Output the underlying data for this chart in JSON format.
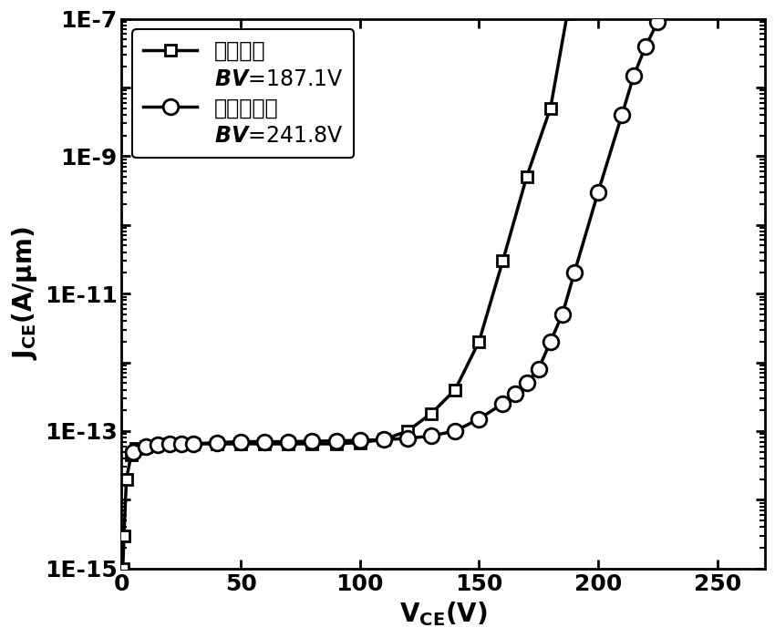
{
  "title": "",
  "xlim": [
    0,
    270
  ],
  "ylim_log": [
    -15,
    -7
  ],
  "background_color": "#ffffff",
  "line_color": "#000000",
  "series1_label": "常规结构",
  "series1_bv": "BV=187.1V",
  "series2_label": "本发明结构",
  "series2_bv": "BV=241.8V",
  "series1_x": [
    0.5,
    1,
    2,
    4,
    6,
    10,
    20,
    30,
    40,
    50,
    60,
    70,
    80,
    90,
    100,
    110,
    120,
    130,
    140,
    150,
    160,
    170,
    180,
    187.1
  ],
  "series1_y": [
    1e-15,
    3e-15,
    2e-14,
    4.5e-14,
    5.5e-14,
    6e-14,
    6.5e-14,
    6.5e-14,
    6.5e-14,
    6.5e-14,
    6.5e-14,
    6.5e-14,
    6.5e-14,
    6.5e-14,
    6.8e-14,
    7.5e-14,
    1e-13,
    1.8e-13,
    4e-13,
    2e-12,
    3e-11,
    5e-10,
    5e-09,
    1.2e-07
  ],
  "series2_x": [
    5,
    10,
    15,
    20,
    25,
    30,
    40,
    50,
    60,
    70,
    80,
    90,
    100,
    110,
    120,
    130,
    140,
    150,
    160,
    165,
    170,
    175,
    180,
    185,
    190,
    200,
    210,
    215,
    220,
    225,
    230,
    235,
    241.8
  ],
  "series2_y": [
    5e-14,
    6e-14,
    6.3e-14,
    6.5e-14,
    6.5e-14,
    6.5e-14,
    6.8e-14,
    7e-14,
    7e-14,
    7e-14,
    7.1e-14,
    7.2e-14,
    7.3e-14,
    7.5e-14,
    7.8e-14,
    8.5e-14,
    1e-13,
    1.5e-13,
    2.5e-13,
    3.5e-13,
    5e-13,
    8e-13,
    2e-12,
    5e-12,
    2e-11,
    3e-10,
    4e-09,
    1.5e-08,
    4e-08,
    9e-08,
    2e-07,
    5e-07,
    1.3e-07
  ],
  "fontsize_label": 20,
  "fontsize_tick": 18,
  "fontsize_legend": 17,
  "linewidth": 2.5,
  "markersize_sq": 9,
  "markersize_circ": 12
}
